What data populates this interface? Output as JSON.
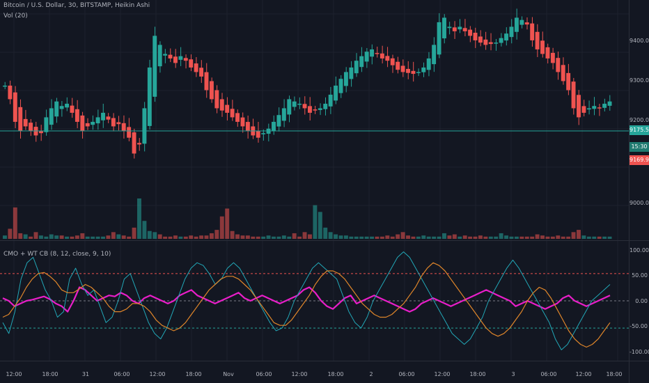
{
  "legend": {
    "symbol": "Bitcoin / U.S. Dollar, 30, BITSTAMP, Heikin Ashi",
    "volume": "Vol (20)",
    "oscillator": "CMO + WT CB (8, 12, close, 9, 10)"
  },
  "price_axis": {
    "ticks": [
      "9400.00",
      "9300.00",
      "9200.00",
      "9000.00"
    ],
    "last_price_badge": "9175.52",
    "countdown_badge": "15:30",
    "low_badge": "9169.91"
  },
  "osc_axis": {
    "ticks": [
      "100.00",
      "50.00",
      "0.00",
      "-50.00",
      "-100.00"
    ]
  },
  "time_axis": {
    "labels": [
      "12:00",
      "18:00",
      "31",
      "06:00",
      "12:00",
      "18:00",
      "Nov",
      "06:00",
      "12:00",
      "18:00",
      "2",
      "06:00",
      "12:00",
      "18:00",
      "3",
      "06:00",
      "12:00",
      "18:00"
    ]
  },
  "colors": {
    "background": "#131722",
    "up": "#26a69a",
    "down": "#ef5350",
    "cmo": "#e91ec9",
    "wt1": "#22a8b8",
    "wt2": "#e0862a",
    "level_high": "#ef5350",
    "level_low": "#26a69a"
  },
  "chart_data": [
    {
      "type": "candlestick",
      "title": "Bitcoin / U.S. Dollar, 30, BITSTAMP, Heikin Ashi",
      "ylim": [
        8930,
        9450
      ],
      "close_path": [
        9210,
        9180,
        9130,
        9110,
        9120,
        9110,
        9100,
        9105,
        9140,
        9160,
        9175,
        9165,
        9170,
        9150,
        9130,
        9110,
        9120,
        9130,
        9140,
        9150,
        9135,
        9120,
        9125,
        9110,
        9095,
        9060,
        9080,
        9160,
        9250,
        9320,
        9300,
        9280,
        9270,
        9260,
        9275,
        9265,
        9250,
        9240,
        9230,
        9200,
        9180,
        9160,
        9155,
        9150,
        9140,
        9130,
        9120,
        9110,
        9100,
        9095,
        9105,
        9115,
        9130,
        9145,
        9160,
        9180,
        9175,
        9170,
        9160,
        9150,
        9155,
        9160,
        9170,
        9190,
        9210,
        9225,
        9240,
        9250,
        9265,
        9275,
        9285,
        9290,
        9280,
        9270,
        9265,
        9255,
        9245,
        9240,
        9238,
        9236,
        9240,
        9250,
        9270,
        9300,
        9350,
        9360,
        9340,
        9330,
        9340,
        9330,
        9320,
        9310,
        9305,
        9300,
        9302,
        9305,
        9315,
        9325,
        9340,
        9360,
        9355,
        9345,
        9310,
        9290,
        9280,
        9270,
        9260,
        9240,
        9220,
        9200,
        9160,
        9140,
        9150,
        9160,
        9165,
        9160,
        9170,
        9175
      ],
      "volume_path": [
        3,
        9,
        28,
        5,
        4,
        2,
        6,
        3,
        2,
        4,
        3,
        3,
        2,
        2,
        3,
        5,
        2,
        2,
        2,
        2,
        3,
        6,
        4,
        3,
        2,
        10,
        36,
        16,
        7,
        6,
        4,
        2,
        2,
        3,
        2,
        2,
        3,
        2,
        3,
        3,
        5,
        8,
        20,
        27,
        7,
        4,
        3,
        3,
        2,
        2,
        2,
        3,
        2,
        2,
        3,
        2,
        5,
        2,
        6,
        4,
        30,
        24,
        10,
        6,
        4,
        3,
        3,
        2,
        2,
        2,
        2,
        2,
        2,
        2,
        3,
        2,
        4,
        6,
        3,
        2,
        2,
        3,
        2,
        2,
        2,
        5,
        3,
        4,
        2,
        3,
        2,
        2,
        3,
        2,
        2,
        2,
        5,
        3,
        2,
        2,
        2,
        2,
        2,
        4,
        3,
        2,
        2,
        3,
        2,
        2,
        6,
        8,
        3,
        2,
        2,
        2,
        2,
        2
      ]
    },
    {
      "type": "line",
      "title": "CMO + WT CB (8, 12, close, 9, 10)",
      "ylim": [
        -110,
        110
      ],
      "levels": [
        50,
        0,
        -50
      ],
      "series": [
        {
          "values": [
            5,
            0,
            -10,
            -5,
            0,
            2,
            5,
            8,
            3,
            -5,
            -10,
            -20,
            0,
            25,
            20,
            10,
            0,
            5,
            10,
            8,
            15,
            10,
            0,
            -5,
            5,
            10,
            5,
            0,
            -5,
            0,
            10,
            15,
            20,
            10,
            5,
            0,
            -5,
            0,
            5,
            10,
            15,
            5,
            0,
            5,
            10,
            5,
            0,
            -5,
            0,
            5,
            10,
            20,
            25,
            15,
            0,
            -10,
            -15,
            -5,
            5,
            10,
            -5,
            0,
            5,
            10,
            5,
            0,
            -5,
            -10,
            -15,
            -20,
            -15,
            -5,
            0,
            5,
            0,
            -5,
            -10,
            -5,
            0,
            5,
            10,
            15,
            20,
            15,
            10,
            5,
            0,
            -10,
            -5,
            0,
            -5,
            -10,
            -15,
            -10,
            -5,
            5,
            10,
            0,
            -5,
            -10,
            -5,
            0,
            5,
            10
          ]
        },
        {
          "values": [
            -40,
            -60,
            -20,
            40,
            70,
            80,
            50,
            20,
            0,
            -30,
            -20,
            40,
            60,
            30,
            10,
            20,
            -10,
            -40,
            -30,
            0,
            40,
            50,
            20,
            -10,
            -40,
            -60,
            -70,
            -50,
            -20,
            10,
            40,
            60,
            70,
            65,
            50,
            30,
            40,
            60,
            70,
            60,
            40,
            20,
            0,
            -20,
            -40,
            -55,
            -50,
            -30,
            0,
            20,
            40,
            60,
            70,
            60,
            50,
            40,
            10,
            -20,
            -40,
            -50,
            -30,
            0,
            20,
            40,
            60,
            80,
            90,
            80,
            60,
            40,
            20,
            0,
            -20,
            -40,
            -60,
            -70,
            -80,
            -70,
            -50,
            -30,
            0,
            20,
            40,
            60,
            75,
            60,
            40,
            20,
            0,
            -20,
            -40,
            -70,
            -90,
            -80,
            -60,
            -40,
            -20,
            0,
            10,
            20,
            30
          ]
        },
        {
          "values": [
            -30,
            -25,
            -10,
            5,
            25,
            40,
            50,
            52,
            45,
            35,
            20,
            15,
            15,
            22,
            30,
            25,
            15,
            5,
            -10,
            -20,
            -20,
            -15,
            -5,
            -5,
            -10,
            -20,
            -35,
            -45,
            -50,
            -55,
            -50,
            -40,
            -25,
            -10,
            5,
            20,
            30,
            40,
            45,
            45,
            40,
            30,
            20,
            5,
            -10,
            -25,
            -40,
            -45,
            -45,
            -35,
            -20,
            -5,
            10,
            30,
            45,
            55,
            55,
            50,
            40,
            25,
            10,
            -5,
            -15,
            -25,
            -30,
            -30,
            -25,
            -15,
            -5,
            10,
            25,
            45,
            60,
            70,
            65,
            55,
            40,
            25,
            10,
            -5,
            -20,
            -35,
            -50,
            -60,
            -65,
            -60,
            -50,
            -35,
            -20,
            0,
            15,
            25,
            20,
            5,
            -15,
            -35,
            -55,
            -70,
            -80,
            -85,
            -80,
            -70,
            -55,
            -40
          ]
        }
      ]
    }
  ]
}
